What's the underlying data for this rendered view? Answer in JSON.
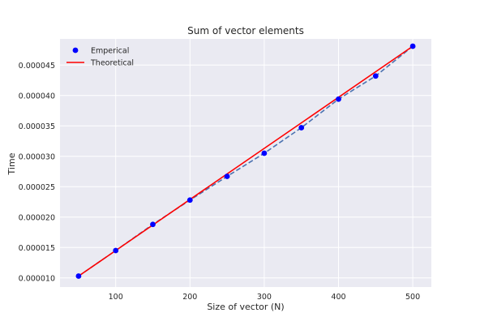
{
  "chart_data": {
    "type": "scatter",
    "title": "Sum of vector elements",
    "xlabel": "Size of vector (N)",
    "ylabel": "Time",
    "xlim": [
      25,
      525
    ],
    "ylim": [
      8.5e-06,
      4.93e-05
    ],
    "xticks": [
      100,
      200,
      300,
      400,
      500
    ],
    "yticks": [
      1e-05,
      1.5e-05,
      2e-05,
      2.5e-05,
      3e-05,
      3.5e-05,
      4e-05,
      4.5e-05
    ],
    "ytick_labels": [
      "0.000010",
      "0.000015",
      "0.000020",
      "0.000025",
      "0.000030",
      "0.000035",
      "0.000040",
      "0.000045"
    ],
    "xtick_labels": [
      "100",
      "200",
      "300",
      "400",
      "500"
    ],
    "grid": true,
    "legend_position": "top-left",
    "series": [
      {
        "name": "Emperical",
        "style": "markers with dashed line",
        "color": "#0000ff",
        "dash_color": "#4c72b0",
        "x": [
          50,
          100,
          150,
          200,
          250,
          300,
          350,
          400,
          450,
          500
        ],
        "y": [
          1.03e-05,
          1.45e-05,
          1.88e-05,
          2.28e-05,
          2.67e-05,
          3.05e-05,
          3.47e-05,
          3.94e-05,
          4.32e-05,
          4.81e-05
        ]
      },
      {
        "name": "Theoretical",
        "style": "solid line",
        "color": "#ff0000",
        "x": [
          50,
          500
        ],
        "y": [
          1.03e-05,
          4.81e-05
        ]
      }
    ],
    "background": "#eaeaf2"
  }
}
